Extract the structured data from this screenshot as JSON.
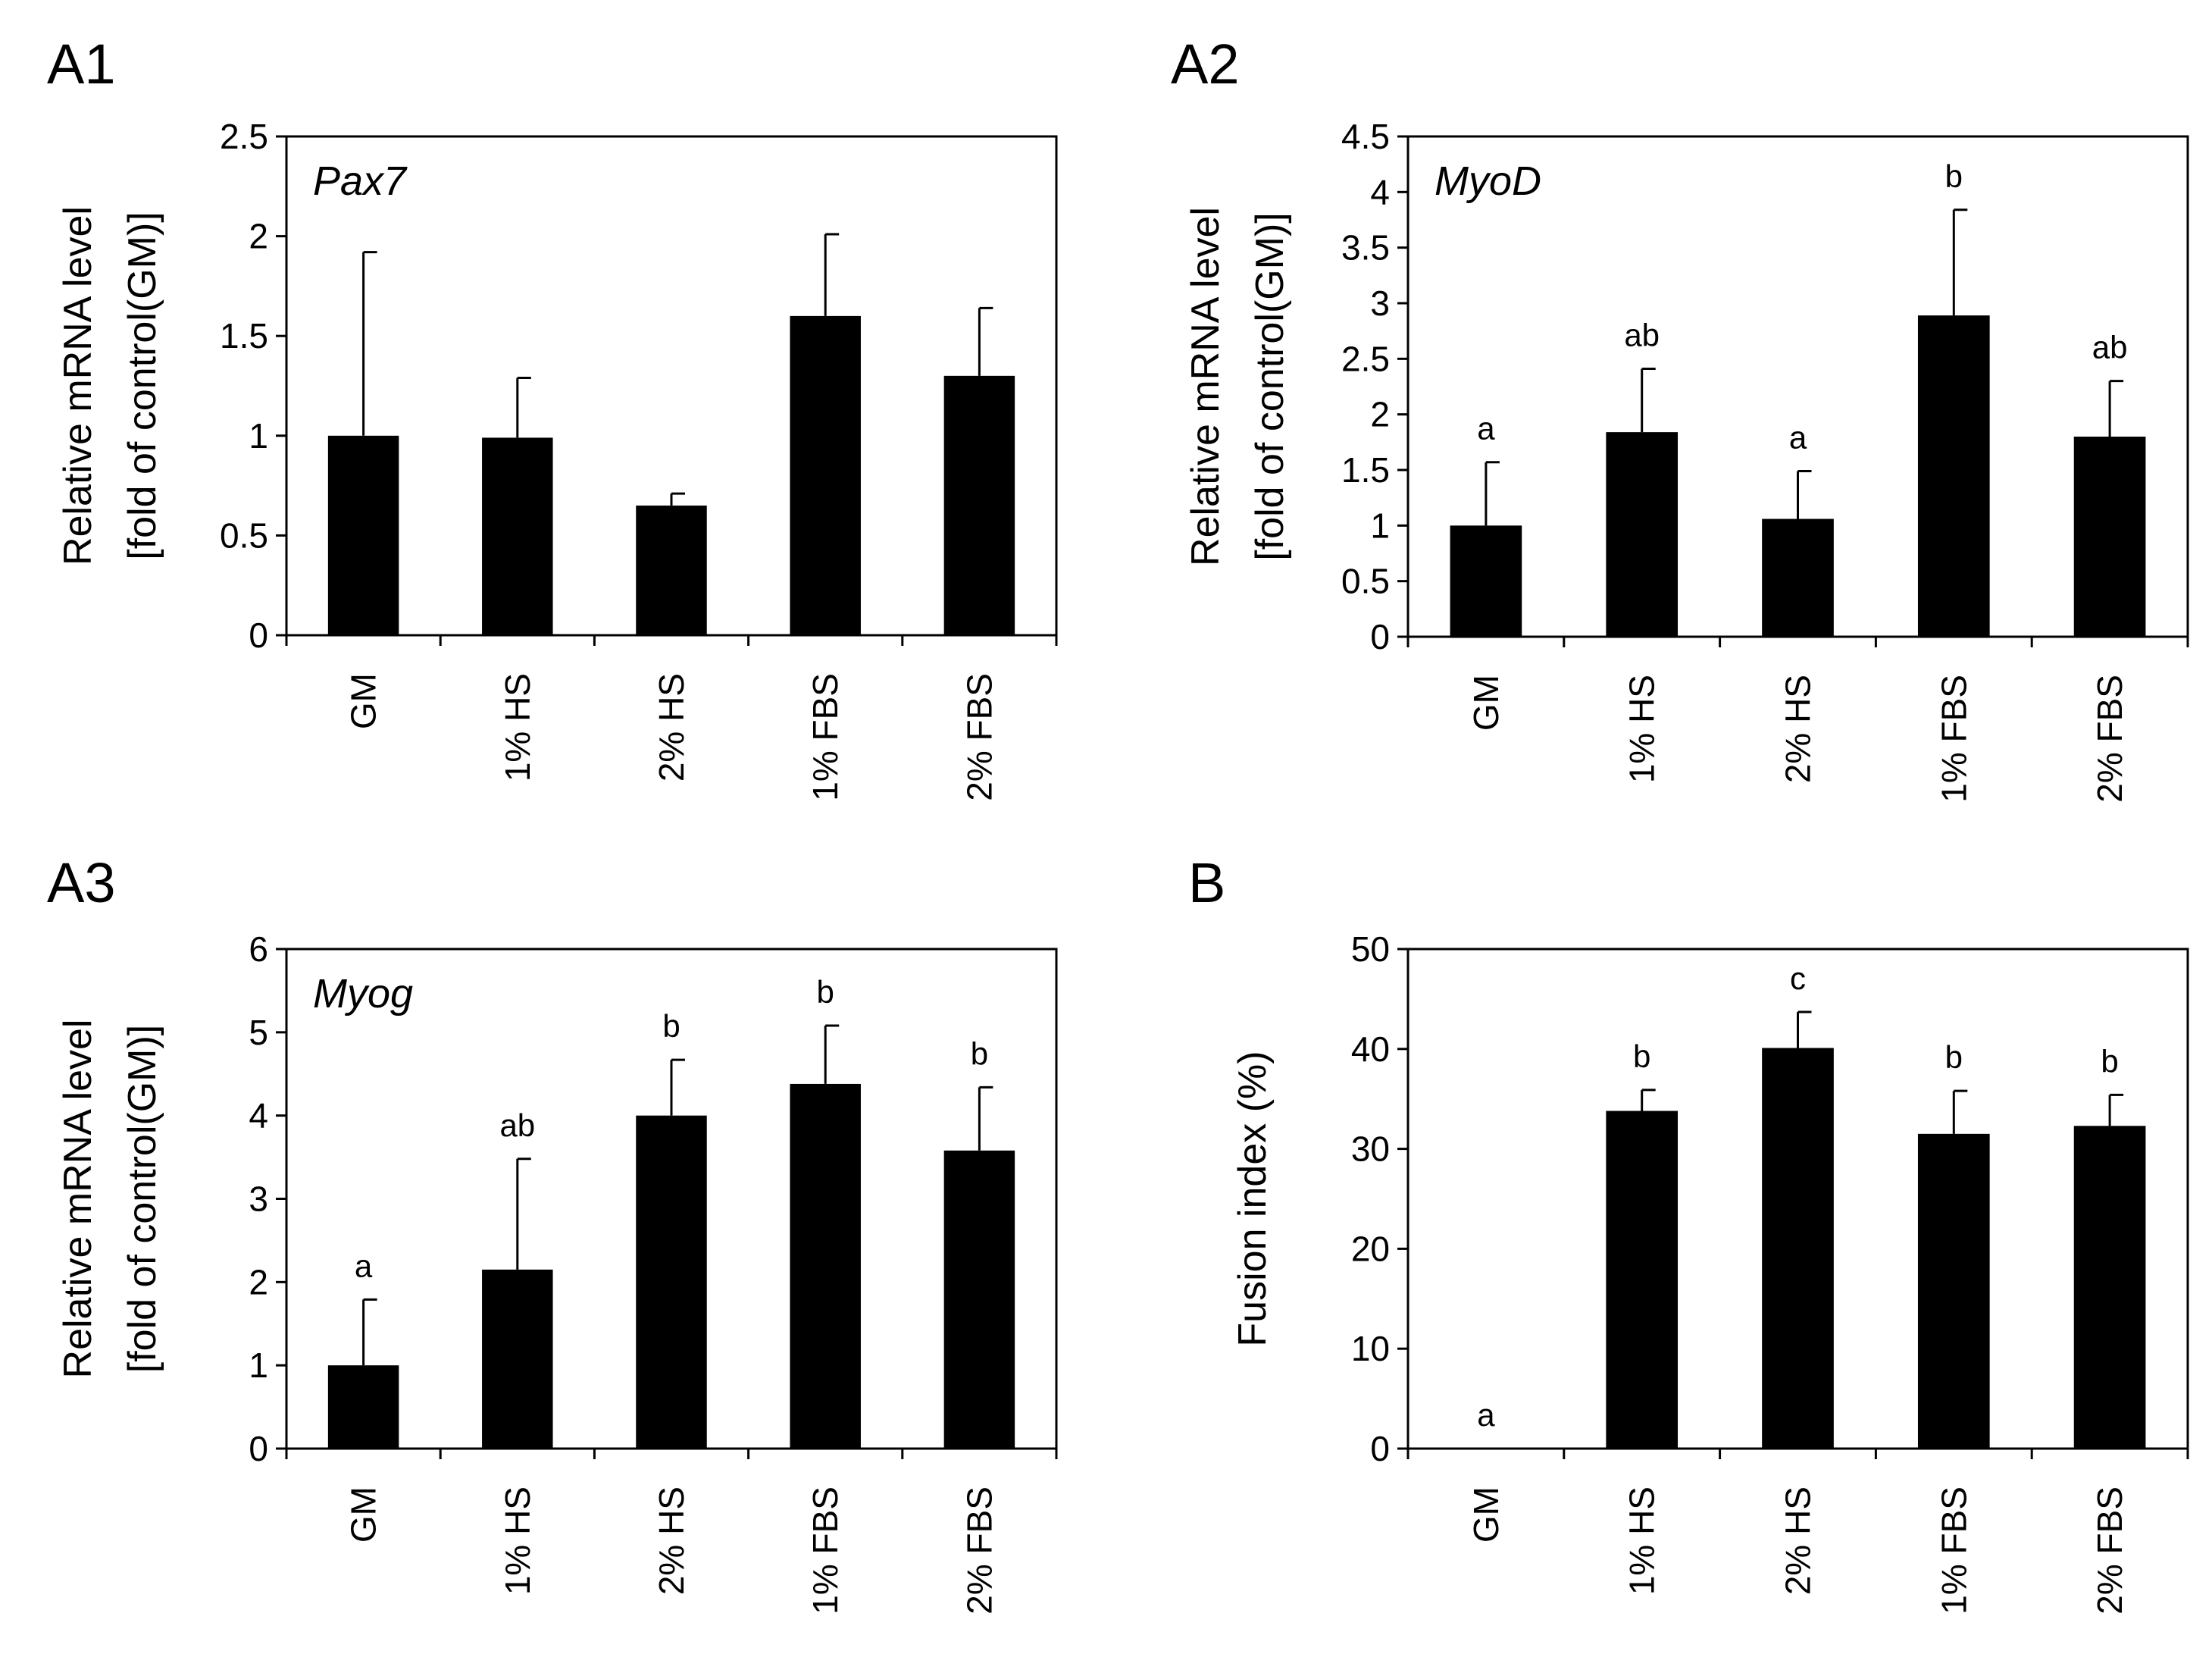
{
  "chart_data": [
    {
      "type": "bar",
      "panel_label": "A1",
      "annotation": "Pax7",
      "ylabel": [
        "Relative mRNA level",
        "[fold of control(GM)]"
      ],
      "categories": [
        "GM",
        "1% HS",
        "2% HS",
        "1% FBS",
        "2% FBS"
      ],
      "values": [
        1.0,
        0.99,
        0.65,
        1.6,
        1.3
      ],
      "errors": [
        0.92,
        0.3,
        0.06,
        0.41,
        0.34
      ],
      "significance": [
        "",
        "",
        "",
        "",
        ""
      ],
      "ylim": [
        0,
        2.5
      ],
      "yticks": [
        "0",
        "0.5",
        "1",
        "1.5",
        "2",
        "2.5"
      ],
      "bar_color": "#000000"
    },
    {
      "type": "bar",
      "panel_label": "A2",
      "annotation": "MyoD",
      "ylabel": [
        "Relative mRNA level",
        "[fold of control(GM)]"
      ],
      "categories": [
        "GM",
        "1% HS",
        "2% HS",
        "1% FBS",
        "2% FBS"
      ],
      "values": [
        1.0,
        1.84,
        1.06,
        2.89,
        1.8
      ],
      "errors": [
        0.57,
        0.57,
        0.43,
        0.95,
        0.5
      ],
      "significance": [
        "a",
        "ab",
        "a",
        "b",
        "ab"
      ],
      "ylim": [
        0,
        4.5
      ],
      "yticks": [
        "0",
        "0.5",
        "1",
        "1.5",
        "2",
        "2.5",
        "3",
        "3.5",
        "4",
        "4.5"
      ],
      "bar_color": "#000000"
    },
    {
      "type": "bar",
      "panel_label": "A3",
      "annotation": "Myog",
      "ylabel": [
        "Relative mRNA level",
        "[fold of control(GM)]"
      ],
      "categories": [
        "GM",
        "1% HS",
        "2% HS",
        "1% FBS",
        "2% FBS"
      ],
      "values": [
        1.0,
        2.15,
        4.0,
        4.38,
        3.58
      ],
      "errors": [
        0.79,
        1.33,
        0.67,
        0.7,
        0.76
      ],
      "significance": [
        "a",
        "ab",
        "b",
        "b",
        "b"
      ],
      "ylim": [
        0,
        6
      ],
      "yticks": [
        "0",
        "1",
        "2",
        "3",
        "4",
        "5",
        "6"
      ],
      "bar_color": "#000000"
    },
    {
      "type": "bar",
      "panel_label": "B",
      "annotation": "",
      "ylabel": [
        "Fusion index (%)"
      ],
      "categories": [
        "GM",
        "1% HS",
        "2% HS",
        "1% FBS",
        "2% FBS"
      ],
      "values": [
        0,
        33.8,
        40.1,
        31.5,
        32.3
      ],
      "errors": [
        0,
        2.1,
        3.6,
        4.3,
        3.1
      ],
      "significance": [
        "a",
        "b",
        "c",
        "b",
        "b"
      ],
      "ylim": [
        0,
        50
      ],
      "yticks": [
        "0",
        "10",
        "20",
        "30",
        "40",
        "50"
      ],
      "bar_color": "#000000"
    }
  ]
}
